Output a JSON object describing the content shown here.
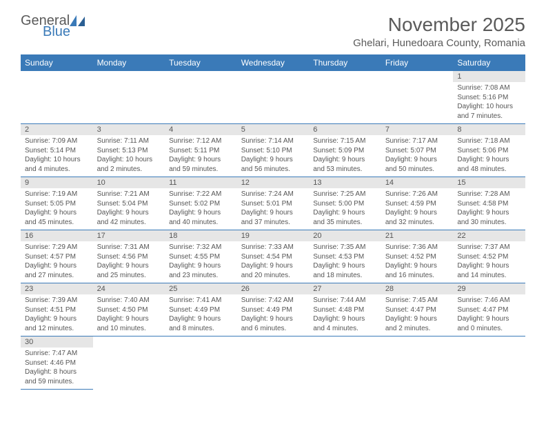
{
  "brand": {
    "name1": "General",
    "name2": "Blue"
  },
  "title": "November 2025",
  "location": "Ghelari, Hunedoara County, Romania",
  "colors": {
    "header_bg": "#3a7ab8",
    "header_text": "#ffffff",
    "daynum_bg": "#e6e6e6",
    "text": "#555555",
    "rule": "#3a7ab8",
    "bg": "#ffffff"
  },
  "fonts": {
    "title_size": 28,
    "location_size": 15,
    "dayheader_size": 12,
    "daynum_size": 11,
    "body_size": 10
  },
  "day_headers": [
    "Sunday",
    "Monday",
    "Tuesday",
    "Wednesday",
    "Thursday",
    "Friday",
    "Saturday"
  ],
  "weeks": [
    [
      null,
      null,
      null,
      null,
      null,
      null,
      {
        "n": "1",
        "sunrise": "7:08 AM",
        "sunset": "5:16 PM",
        "dl1": "10 hours",
        "dl2": "and 7 minutes."
      }
    ],
    [
      {
        "n": "2",
        "sunrise": "7:09 AM",
        "sunset": "5:14 PM",
        "dl1": "10 hours",
        "dl2": "and 4 minutes."
      },
      {
        "n": "3",
        "sunrise": "7:11 AM",
        "sunset": "5:13 PM",
        "dl1": "10 hours",
        "dl2": "and 2 minutes."
      },
      {
        "n": "4",
        "sunrise": "7:12 AM",
        "sunset": "5:11 PM",
        "dl1": "9 hours",
        "dl2": "and 59 minutes."
      },
      {
        "n": "5",
        "sunrise": "7:14 AM",
        "sunset": "5:10 PM",
        "dl1": "9 hours",
        "dl2": "and 56 minutes."
      },
      {
        "n": "6",
        "sunrise": "7:15 AM",
        "sunset": "5:09 PM",
        "dl1": "9 hours",
        "dl2": "and 53 minutes."
      },
      {
        "n": "7",
        "sunrise": "7:17 AM",
        "sunset": "5:07 PM",
        "dl1": "9 hours",
        "dl2": "and 50 minutes."
      },
      {
        "n": "8",
        "sunrise": "7:18 AM",
        "sunset": "5:06 PM",
        "dl1": "9 hours",
        "dl2": "and 48 minutes."
      }
    ],
    [
      {
        "n": "9",
        "sunrise": "7:19 AM",
        "sunset": "5:05 PM",
        "dl1": "9 hours",
        "dl2": "and 45 minutes."
      },
      {
        "n": "10",
        "sunrise": "7:21 AM",
        "sunset": "5:04 PM",
        "dl1": "9 hours",
        "dl2": "and 42 minutes."
      },
      {
        "n": "11",
        "sunrise": "7:22 AM",
        "sunset": "5:02 PM",
        "dl1": "9 hours",
        "dl2": "and 40 minutes."
      },
      {
        "n": "12",
        "sunrise": "7:24 AM",
        "sunset": "5:01 PM",
        "dl1": "9 hours",
        "dl2": "and 37 minutes."
      },
      {
        "n": "13",
        "sunrise": "7:25 AM",
        "sunset": "5:00 PM",
        "dl1": "9 hours",
        "dl2": "and 35 minutes."
      },
      {
        "n": "14",
        "sunrise": "7:26 AM",
        "sunset": "4:59 PM",
        "dl1": "9 hours",
        "dl2": "and 32 minutes."
      },
      {
        "n": "15",
        "sunrise": "7:28 AM",
        "sunset": "4:58 PM",
        "dl1": "9 hours",
        "dl2": "and 30 minutes."
      }
    ],
    [
      {
        "n": "16",
        "sunrise": "7:29 AM",
        "sunset": "4:57 PM",
        "dl1": "9 hours",
        "dl2": "and 27 minutes."
      },
      {
        "n": "17",
        "sunrise": "7:31 AM",
        "sunset": "4:56 PM",
        "dl1": "9 hours",
        "dl2": "and 25 minutes."
      },
      {
        "n": "18",
        "sunrise": "7:32 AM",
        "sunset": "4:55 PM",
        "dl1": "9 hours",
        "dl2": "and 23 minutes."
      },
      {
        "n": "19",
        "sunrise": "7:33 AM",
        "sunset": "4:54 PM",
        "dl1": "9 hours",
        "dl2": "and 20 minutes."
      },
      {
        "n": "20",
        "sunrise": "7:35 AM",
        "sunset": "4:53 PM",
        "dl1": "9 hours",
        "dl2": "and 18 minutes."
      },
      {
        "n": "21",
        "sunrise": "7:36 AM",
        "sunset": "4:52 PM",
        "dl1": "9 hours",
        "dl2": "and 16 minutes."
      },
      {
        "n": "22",
        "sunrise": "7:37 AM",
        "sunset": "4:52 PM",
        "dl1": "9 hours",
        "dl2": "and 14 minutes."
      }
    ],
    [
      {
        "n": "23",
        "sunrise": "7:39 AM",
        "sunset": "4:51 PM",
        "dl1": "9 hours",
        "dl2": "and 12 minutes."
      },
      {
        "n": "24",
        "sunrise": "7:40 AM",
        "sunset": "4:50 PM",
        "dl1": "9 hours",
        "dl2": "and 10 minutes."
      },
      {
        "n": "25",
        "sunrise": "7:41 AM",
        "sunset": "4:49 PM",
        "dl1": "9 hours",
        "dl2": "and 8 minutes."
      },
      {
        "n": "26",
        "sunrise": "7:42 AM",
        "sunset": "4:49 PM",
        "dl1": "9 hours",
        "dl2": "and 6 minutes."
      },
      {
        "n": "27",
        "sunrise": "7:44 AM",
        "sunset": "4:48 PM",
        "dl1": "9 hours",
        "dl2": "and 4 minutes."
      },
      {
        "n": "28",
        "sunrise": "7:45 AM",
        "sunset": "4:47 PM",
        "dl1": "9 hours",
        "dl2": "and 2 minutes."
      },
      {
        "n": "29",
        "sunrise": "7:46 AM",
        "sunset": "4:47 PM",
        "dl1": "9 hours",
        "dl2": "and 0 minutes."
      }
    ],
    [
      {
        "n": "30",
        "sunrise": "7:47 AM",
        "sunset": "4:46 PM",
        "dl1": "8 hours",
        "dl2": "and 59 minutes."
      },
      null,
      null,
      null,
      null,
      null,
      null
    ]
  ],
  "labels": {
    "sunrise": "Sunrise:",
    "sunset": "Sunset:",
    "daylight": "Daylight:"
  }
}
